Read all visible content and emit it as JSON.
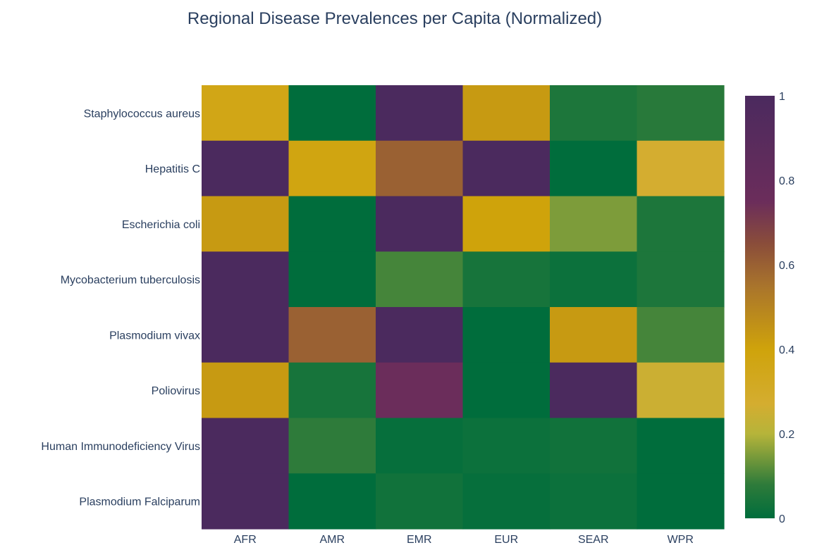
{
  "chart_data": {
    "type": "heatmap",
    "title": "Regional Disease Prevalences per Capita (Normalized)",
    "xlabel": "",
    "ylabel": "",
    "x": [
      "AFR",
      "AMR",
      "EMR",
      "EUR",
      "SEAR",
      "WPR"
    ],
    "y": [
      "Staphylococcus aureus",
      "Hepatitis C",
      "Escherichia coli",
      "Mycobacterium tuberculosis",
      "Plasmodium vivax",
      "Poliovirus",
      "Human Immunodeficiency Virus",
      "Plasmodium Falciparum"
    ],
    "z": [
      [
        0.36,
        0.0,
        1.0,
        0.43,
        0.05,
        0.07
      ],
      [
        1.0,
        0.38,
        0.6,
        1.0,
        0.0,
        0.27
      ],
      [
        0.43,
        0.0,
        1.0,
        0.4,
        0.15,
        0.05
      ],
      [
        1.0,
        0.0,
        0.1,
        0.04,
        0.02,
        0.05
      ],
      [
        1.0,
        0.6,
        1.0,
        0.0,
        0.43,
        0.1
      ],
      [
        0.43,
        0.04,
        0.75,
        0.0,
        1.0,
        0.25
      ],
      [
        1.0,
        0.08,
        0.01,
        0.02,
        0.03,
        0.0
      ],
      [
        1.0,
        0.0,
        0.03,
        0.01,
        0.02,
        0.0
      ]
    ],
    "zmin": 0,
    "zmax": 1,
    "colorbar": {
      "ticks": [
        0,
        0.2,
        0.4,
        0.6,
        0.8,
        1
      ],
      "tick_labels": [
        "0",
        "0.2",
        "0.4",
        "0.6",
        "0.8",
        "1"
      ]
    },
    "colorscale": [
      [
        0.0,
        "#006d3c"
      ],
      [
        0.08,
        "#2e7b3a"
      ],
      [
        0.2,
        "#b6b43a"
      ],
      [
        0.27,
        "#d4ad30"
      ],
      [
        0.4,
        "#cfa30b"
      ],
      [
        0.55,
        "#a9742c"
      ],
      [
        0.65,
        "#8a4d3a"
      ],
      [
        0.75,
        "#6b2d5b"
      ],
      [
        1.0,
        "#4b2a5e"
      ]
    ]
  }
}
